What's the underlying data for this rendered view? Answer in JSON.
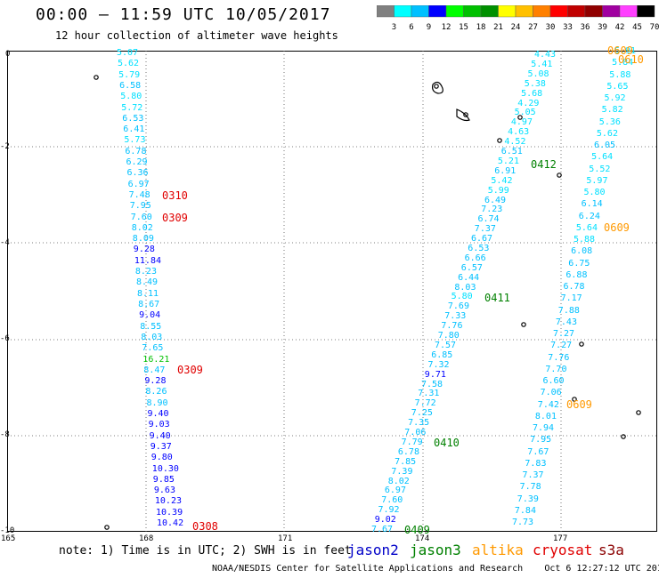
{
  "header": {
    "title": "00:00 – 11:59 UTC 10/05/2017",
    "subtitle": "12 hour collection of altimeter wave heights"
  },
  "legend": {
    "unit": "(ft)",
    "bins": [
      {
        "label": "3",
        "color": "#808080"
      },
      {
        "label": "6",
        "color": "#00ffff"
      },
      {
        "label": "9",
        "color": "#00c0ff"
      },
      {
        "label": "12",
        "color": "#0000ff"
      },
      {
        "label": "15",
        "color": "#00ff00"
      },
      {
        "label": "18",
        "color": "#00c000"
      },
      {
        "label": "21",
        "color": "#009000"
      },
      {
        "label": "24",
        "color": "#ffff00"
      },
      {
        "label": "27",
        "color": "#ffc000"
      },
      {
        "label": "30",
        "color": "#ff8000"
      },
      {
        "label": "33",
        "color": "#ff0000"
      },
      {
        "label": "36",
        "color": "#c00000"
      },
      {
        "label": "39",
        "color": "#900000"
      },
      {
        "label": "42",
        "color": "#a000a0"
      },
      {
        "label": "45",
        "color": "#ff40ff"
      },
      {
        "label": "70",
        "color": "#000000"
      }
    ]
  },
  "map": {
    "lon_ticks": [
      "165",
      "168",
      "171",
      "174",
      "177"
    ],
    "lat_ticks": [
      "0",
      "-2",
      "-4",
      "-6",
      "-8",
      "-10"
    ],
    "track_colors": {
      "jason2": "#0000c8",
      "jason3": "#008000",
      "altika": "#ff9900",
      "cryosat": "#e00000"
    }
  },
  "tracks": [
    {
      "id": "track-0308",
      "time_labels": [
        {
          "text": "0310",
          "sat": "cryosat"
        },
        {
          "text": "0309",
          "sat": "cryosat"
        },
        {
          "text": "0309",
          "sat": "cryosat"
        },
        {
          "text": "0308",
          "sat": "cryosat"
        }
      ],
      "values": [
        "5.07",
        "5.62",
        "5.79",
        "6.58",
        "5.80",
        "5.72",
        "6.53",
        "6.41",
        "5.73",
        "6.78",
        "6.29",
        "6.36",
        "6.97",
        "7.48",
        "7.95",
        "7.60",
        "8.02",
        "8.09",
        "9.28",
        "11.84",
        "8.23",
        "8.49",
        "8.11",
        "8.67",
        "9.04",
        "8.55",
        "8.03",
        "7.65",
        "16.21",
        "8.47",
        "9.28",
        "8.26",
        "8.90",
        "9.40",
        "9.03",
        "9.40",
        "9.37",
        "9.80",
        "10.30",
        "9.85",
        "9.63",
        "10.23",
        "10.39",
        "10.42"
      ]
    },
    {
      "id": "track-0410",
      "time_labels": [
        {
          "text": "0412",
          "sat": "jason3"
        },
        {
          "text": "0411",
          "sat": "jason3"
        },
        {
          "text": "0410",
          "sat": "jason3"
        },
        {
          "text": "0409",
          "sat": "jason3"
        }
      ],
      "values": [
        "4.43",
        "5.41",
        "5.08",
        "5.38",
        "5.68",
        "4.29",
        "5.05",
        "4.97",
        "4.63",
        "4.52",
        "6.51",
        "5.21",
        "6.91",
        "5.42",
        "5.99",
        "6.49",
        "7.23",
        "6.74",
        "7.37",
        "6.67",
        "6.53",
        "6.66",
        "6.57",
        "6.44",
        "8.03",
        "5.80",
        "7.69",
        "7.33",
        "7.76",
        "7.80",
        "7.57",
        "6.85",
        "7.32",
        "9.71",
        "7.58",
        "7.31",
        "7.72",
        "7.25",
        "7.35",
        "7.06",
        "7.79",
        "6.78",
        "7.85",
        "7.39",
        "8.02",
        "6.97",
        "7.60",
        "7.92",
        "9.02",
        "7.67"
      ]
    },
    {
      "id": "track-0610",
      "time_labels": [
        {
          "text": "0609",
          "sat": "altika"
        },
        {
          "text": "0609",
          "sat": "altika"
        },
        {
          "text": "0609",
          "sat": "altika"
        },
        {
          "text": "0610",
          "sat": "altika"
        }
      ],
      "values": [
        "5.91",
        "5.84",
        "5.88",
        "5.65",
        "5.92",
        "5.82",
        "5.36",
        "5.62",
        "6.05",
        "5.64",
        "5.52",
        "5.97",
        "5.80",
        "6.14",
        "6.24",
        "5.64",
        "5.88",
        "6.08",
        "6.75",
        "6.88",
        "6.78",
        "7.17",
        "7.88",
        "7.43",
        "7.27",
        "7.27",
        "7.76",
        "7.70",
        "6.60",
        "7.06",
        "7.42",
        "8.01",
        "7.94",
        "7.95",
        "7.67",
        "7.83",
        "7.37",
        "7.78",
        "7.39",
        "7.84",
        "7.73"
      ]
    }
  ],
  "note": "note: 1) Time is in UTC; 2) SWH is in feet",
  "satellites": [
    "jason2",
    "jason3",
    "altika",
    "cryosat",
    "s3a"
  ],
  "footer": {
    "credit": "NOAA/NESDIS Center for Satellite Applications and Research",
    "timestamp": "Oct  6 12:27:12 UTC 2017"
  }
}
